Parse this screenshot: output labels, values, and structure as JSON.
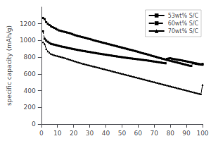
{
  "chart_data": {
    "type": "line",
    "ylabel": "specific capacity (mAh/g)",
    "color": "black",
    "x": [
      1,
      2,
      3,
      4,
      5,
      6,
      7,
      8,
      9,
      10,
      11,
      12,
      13,
      14,
      15,
      16,
      17,
      18,
      19,
      20,
      21,
      22,
      23,
      24,
      25,
      26,
      27,
      28,
      29,
      30,
      31,
      32,
      33,
      34,
      35,
      36,
      37,
      38,
      39,
      40,
      41,
      42,
      43,
      44,
      45,
      46,
      47,
      48,
      49,
      50,
      51,
      52,
      53,
      54,
      55,
      56,
      57,
      58,
      59,
      60,
      61,
      62,
      63,
      64,
      65,
      66,
      67,
      68,
      69,
      70,
      71,
      72,
      73,
      74,
      75,
      76,
      77,
      78,
      79,
      80,
      81,
      82,
      83,
      84,
      85,
      86,
      87,
      88,
      89,
      90,
      91,
      92,
      93,
      94,
      95,
      96,
      97,
      98,
      99,
      100
    ],
    "series": [
      {
        "name": "53wt% S/C",
        "marker": "square",
        "line_style": "solid",
        "values": [
          1270,
          1255,
          1220,
          1200,
          1185,
          1170,
          1160,
          1150,
          1140,
          1130,
          1120,
          1115,
          1110,
          1105,
          1100,
          1095,
          1090,
          1085,
          1078,
          1070,
          1063,
          1058,
          1052,
          1048,
          1042,
          1038,
          1033,
          1028,
          1022,
          1018,
          1012,
          1005,
          1000,
          995,
          990,
          985,
          980,
          975,
          970,
          965,
          960,
          955,
          950,
          945,
          940,
          935,
          930,
          925,
          920,
          915,
          910,
          905,
          900,
          895,
          890,
          885,
          880,
          875,
          870,
          865,
          858,
          852,
          847,
          842,
          838,
          832,
          827,
          820,
          815,
          810,
          804,
          798,
          793,
          788,
          782,
          778,
          772,
          768,
          762,
          757,
          752,
          748,
          742,
          738,
          733,
          728,
          723,
          718,
          713,
          708,
          703,
          698,
          695,
          730,
          725,
          720,
          718,
          715,
          712,
          720
        ]
      },
      {
        "name": "60wt% S/C",
        "marker": "square",
        "line_style": "dashed",
        "values": [
          1110,
          1020,
          1000,
          985,
          970,
          960,
          955,
          950,
          945,
          940,
          935,
          930,
          926,
          922,
          918,
          913,
          909,
          905,
          901,
          897,
          893,
          889,
          885,
          882,
          878,
          875,
          872,
          868,
          865,
          862,
          858,
          855,
          852,
          849,
          845,
          842,
          839,
          836,
          833,
          830,
          827,
          824,
          821,
          818,
          815,
          812,
          809,
          806,
          803,
          800,
          797,
          795,
          792,
          790,
          787,
          785,
          782,
          780,
          777,
          775,
          773,
          770,
          768,
          765,
          763,
          760,
          757,
          754,
          751,
          748,
          745,
          742,
          739,
          736,
          733,
          730,
          727,
          780,
          785,
          788,
          782,
          778,
          775,
          772,
          769,
          766,
          762,
          758,
          754,
          750,
          746,
          742,
          738,
          734,
          730,
          726,
          722,
          718,
          714,
          710
        ]
      },
      {
        "name": "70wt% S/C",
        "marker": "triangle",
        "line_style": "solid",
        "values": [
          980,
          960,
          900,
          870,
          855,
          840,
          832,
          825,
          820,
          815,
          810,
          805,
          800,
          795,
          788,
          782,
          775,
          770,
          763,
          757,
          750,
          745,
          738,
          733,
          728,
          722,
          717,
          712,
          707,
          702,
          697,
          692,
          688,
          683,
          678,
          673,
          668,
          663,
          658,
          653,
          648,
          643,
          638,
          633,
          628,
          623,
          618,
          613,
          608,
          603,
          598,
          593,
          588,
          583,
          578,
          573,
          568,
          563,
          558,
          553,
          548,
          543,
          538,
          533,
          528,
          523,
          518,
          513,
          508,
          503,
          498,
          493,
          488,
          483,
          478,
          473,
          468,
          463,
          458,
          453,
          448,
          443,
          438,
          433,
          428,
          423,
          418,
          413,
          408,
          403,
          398,
          393,
          388,
          383,
          378,
          373,
          368,
          363,
          358,
          470
        ]
      }
    ],
    "xlim": [
      0,
      100
    ],
    "ylim": [
      0,
      1400
    ],
    "xticks": [
      0,
      10,
      20,
      30,
      40,
      50,
      60,
      70,
      80,
      90,
      100
    ],
    "yticks": [
      0,
      200,
      400,
      600,
      800,
      1000,
      1200
    ],
    "grid": false,
    "legend": "upper right"
  }
}
